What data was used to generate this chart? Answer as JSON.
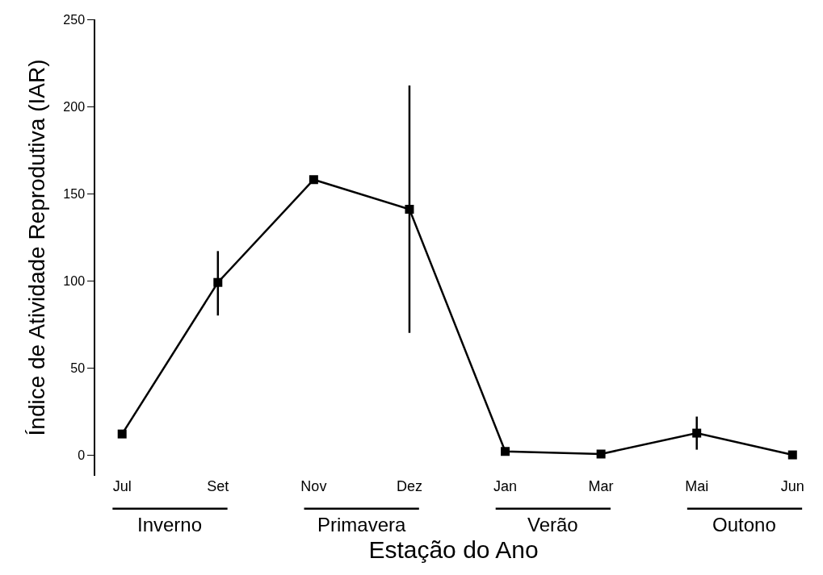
{
  "chart_data": {
    "type": "line",
    "xlabel": "Estação do Ano",
    "ylabel": "Índice de Atividade Reprodutiva (IAR)",
    "categories": [
      "Jul",
      "Set",
      "Nov",
      "Dez",
      "Jan",
      "Mar",
      "Mai",
      "Jun"
    ],
    "series": [
      {
        "color": "#000000",
        "values": [
          12,
          99,
          158,
          141,
          2,
          0.5,
          12.5,
          0
        ],
        "errors": [
          null,
          [
            80,
            117
          ],
          null,
          [
            70,
            212
          ],
          null,
          null,
          [
            3,
            22
          ],
          null
        ]
      }
    ],
    "ylim": [
      -12,
      250
    ],
    "yticks": [
      0,
      50,
      100,
      150,
      200,
      250
    ],
    "marker": "square",
    "line_style": "solid",
    "annotations": [
      "Inverno",
      "Primavera",
      "Verão",
      "Outono"
    ]
  }
}
